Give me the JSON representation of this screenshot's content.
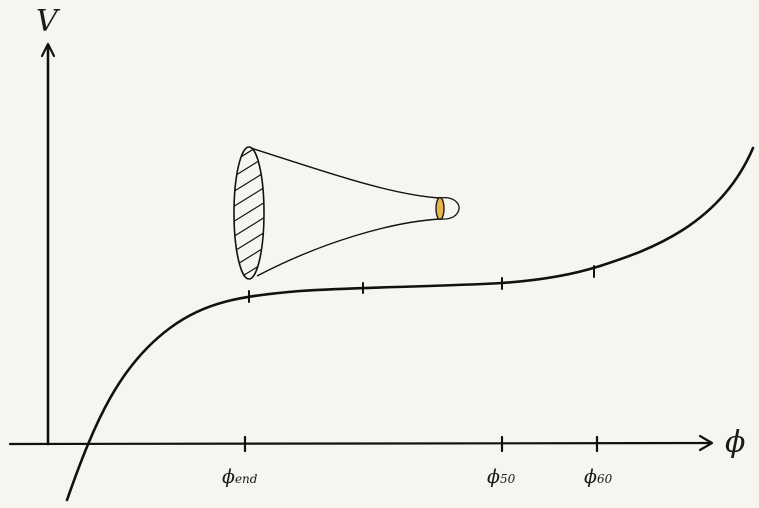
{
  "axes": {
    "y_label": "V",
    "x_label": "ϕ"
  },
  "ticks": [
    {
      "symbol": "ϕ",
      "sub": "end"
    },
    {
      "symbol": "ϕ",
      "sub": "50"
    },
    {
      "symbol": "ϕ",
      "sub": "60"
    }
  ],
  "colors": {
    "ink": "#111111",
    "paper": "#f7f5f0",
    "highlight": "#e8b34a"
  },
  "icons": [
    "horn-trumpet-icon"
  ]
}
